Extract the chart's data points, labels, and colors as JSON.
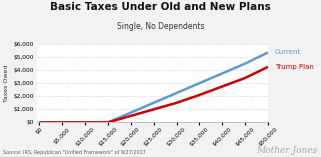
{
  "title": "Basic Taxes Under Old and New Plans",
  "subtitle": "Single, No Dependents",
  "xlabel_values": [
    0,
    5000,
    10000,
    15000,
    20000,
    25000,
    30000,
    35000,
    40000,
    45000,
    50000
  ],
  "current_line": {
    "x": [
      0,
      5000,
      10000,
      15000,
      20000,
      25000,
      30000,
      35000,
      40000,
      45000,
      50000
    ],
    "y": [
      0,
      0,
      0,
      0,
      750,
      1500,
      2250,
      3000,
      3750,
      4500,
      5350
    ],
    "color": "#5b9bd5",
    "label": "Current",
    "linewidth": 1.8
  },
  "trump_line": {
    "x": [
      0,
      5000,
      10000,
      15000,
      20000,
      25000,
      30000,
      35000,
      40000,
      45000,
      50000
    ],
    "y": [
      0,
      0,
      0,
      0,
      500,
      1000,
      1500,
      2100,
      2750,
      3400,
      4250
    ],
    "color": "#cc0000",
    "label": "Trump Plan",
    "linewidth": 1.8
  },
  "ylim": [
    0,
    6000
  ],
  "xlim": [
    -500,
    50000
  ],
  "ytick_values": [
    0,
    1000,
    2000,
    3000,
    4000,
    5000,
    6000
  ],
  "background_color": "#f2f2f2",
  "plot_bg_color": "#ffffff",
  "source_text": "Source: IRS, Republican \"Unified Framework\" of 9/27/2017",
  "watermark": "Mother Jones",
  "ylabel": "Taxes Owed",
  "title_fontsize": 7.5,
  "subtitle_fontsize": 5.5,
  "axis_fontsize": 4.2,
  "label_fontsize": 5.0,
  "ylabel_fontsize": 4.5
}
